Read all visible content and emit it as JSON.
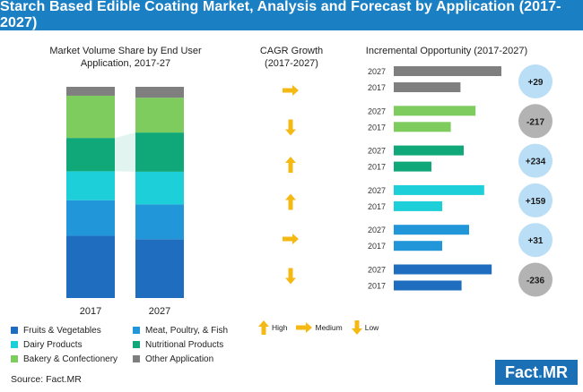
{
  "title": "Starch Based Edible Coating Market, Analysis and Forecast by Application (2017-2027)",
  "left_panel": {
    "title_line1": "Market Volume Share by End User",
    "title_line2": "Application, 2017-27"
  },
  "mid_panel": {
    "title_line1": "CAGR Growth",
    "title_line2": "(2017-2027)"
  },
  "right_panel": {
    "title": "Incremental Opportunity (2017-2027)"
  },
  "colors": {
    "fruits_vegetables": "#1f6dbf",
    "meat_poultry_fish": "#2196d9",
    "dairy_products": "#1ccfd8",
    "nutritional_products": "#10a878",
    "bakery_confectionery": "#7ecb5e",
    "other_application": "#7f7f7f",
    "arrow": "#f5b914",
    "bubble_positive": "#b9def5",
    "bubble_negative": "#b3b3b3",
    "title_bar": "#1b7fc4"
  },
  "legend": [
    {
      "label": "Fruits & Vegetables",
      "color": "#1f6dbf"
    },
    {
      "label": "Meat, Poultry, & Fish",
      "color": "#2196d9"
    },
    {
      "label": "Dairy Products",
      "color": "#1ccfd8"
    },
    {
      "label": "Nutritional Products",
      "color": "#10a878"
    },
    {
      "label": "Bakery & Confectionery",
      "color": "#7ecb5e"
    },
    {
      "label": "Other Application",
      "color": "#7f7f7f"
    }
  ],
  "arrow_legend": {
    "high": "High",
    "medium": "Medium",
    "low": "Low"
  },
  "source": "Source: Fact.MR",
  "logo": {
    "main": "Fact",
    "dot": ".",
    "suffix": "MR"
  },
  "chart_data": [
    {
      "type": "bar",
      "stacked": true,
      "percent": true,
      "categories": [
        "2017",
        "2027"
      ],
      "series": [
        {
          "name": "Fruits & Vegetables",
          "values": [
            28,
            27
          ]
        },
        {
          "name": "Meat, Poultry, & Fish",
          "values": [
            16,
            16
          ]
        },
        {
          "name": "Dairy Products",
          "values": [
            13,
            15
          ]
        },
        {
          "name": "Nutritional Products",
          "values": [
            15,
            18
          ]
        },
        {
          "name": "Bakery & Confectionery",
          "values": [
            19,
            16
          ]
        },
        {
          "name": "Other Application",
          "values": [
            4,
            5
          ]
        }
      ]
    },
    {
      "type": "table",
      "title": "CAGR Growth (2017-2027)",
      "rows": [
        {
          "series": "Other Application",
          "level": "Medium",
          "direction": "right"
        },
        {
          "series": "Bakery & Confectionery",
          "level": "Low",
          "direction": "down"
        },
        {
          "series": "Nutritional Products",
          "level": "High",
          "direction": "up"
        },
        {
          "series": "Dairy Products",
          "level": "High",
          "direction": "up"
        },
        {
          "series": "Meat, Poultry, & Fish",
          "level": "Medium",
          "direction": "right"
        },
        {
          "series": "Fruits & Vegetables",
          "level": "Low",
          "direction": "down"
        }
      ]
    },
    {
      "type": "bar",
      "orientation": "horizontal",
      "title": "Incremental Opportunity (2017-2027)",
      "groups": [
        {
          "series": "Other Application",
          "color": "#7f7f7f",
          "v2027": 100,
          "v2017": 62,
          "delta": "+29",
          "positive": true
        },
        {
          "series": "Bakery & Confectionery",
          "color": "#7ecb5e",
          "v2027": 76,
          "v2017": 53,
          "delta": "-217",
          "positive": false
        },
        {
          "series": "Nutritional Products",
          "color": "#10a878",
          "v2027": 65,
          "v2017": 35,
          "delta": "+234",
          "positive": true
        },
        {
          "series": "Dairy Products",
          "color": "#1ccfd8",
          "v2027": 84,
          "v2017": 45,
          "delta": "+159",
          "positive": true
        },
        {
          "series": "Meat, Poultry, & Fish",
          "color": "#2196d9",
          "v2027": 70,
          "v2017": 45,
          "delta": "+31",
          "positive": true
        },
        {
          "series": "Fruits & Vegetables",
          "color": "#1f6dbf",
          "v2027": 91,
          "v2017": 63,
          "delta": "-236",
          "positive": false
        }
      ],
      "year_labels": [
        "2027",
        "2017"
      ]
    }
  ]
}
